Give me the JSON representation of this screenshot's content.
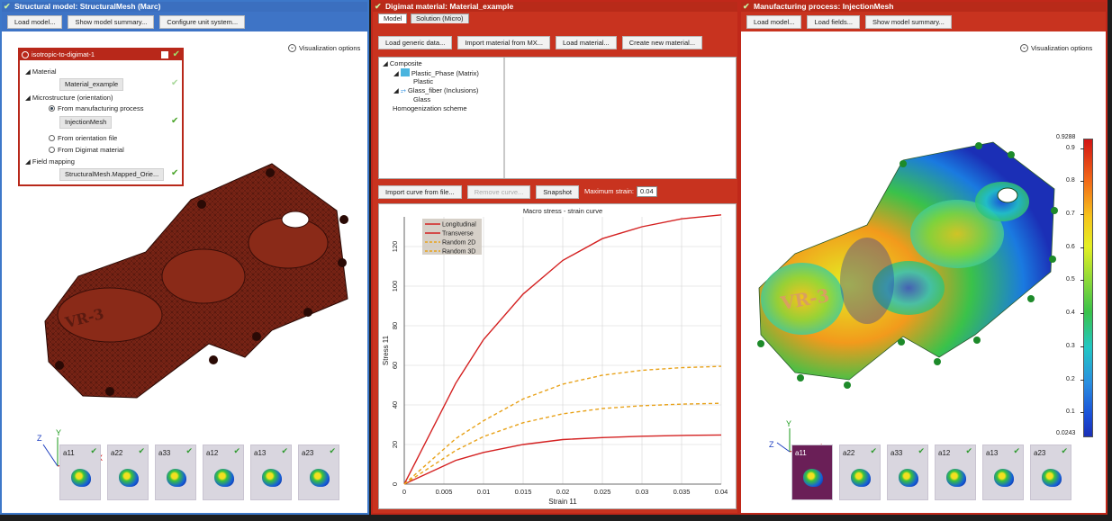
{
  "left_panel": {
    "title": "Structural model: StructuralMesh (Marc)",
    "toolbar": [
      "Load model...",
      "Show model summary...",
      "Configure unit system..."
    ],
    "visualization_options": "Visualization options",
    "workflow": {
      "title": "isotropic-to-digimat-1",
      "material_label": "Material",
      "material_value": "Material_example",
      "microstructure_label": "Microstructure (orientation)",
      "option_manufacturing": "From manufacturing process",
      "manufacturing_value": "InjectionMesh",
      "option_orientation_file": "From orientation file",
      "option_digimat": "From Digimat material",
      "field_mapping_label": "Field mapping",
      "field_mapping_value": "StructuralMesh.Mapped_Orie..."
    },
    "axis_labels": {
      "x": "X",
      "y": "Y",
      "z": "Z"
    },
    "thumbs": [
      "a11",
      "a22",
      "a33",
      "a12",
      "a13",
      "a23"
    ],
    "mesh_text": "VR-3"
  },
  "mid_panel": {
    "title": "Digimat material: Material_example",
    "tabs": [
      "Model",
      "Solution (Micro)"
    ],
    "toolbar": [
      "Load generic data...",
      "Import material from MX...",
      "Load material...",
      "Create new material..."
    ],
    "tree": {
      "composite": "Composite",
      "phase1": "Plastic_Phase (Matrix)",
      "phase1_child": "Plastic",
      "phase2": "Glass_fiber (Inclusions)",
      "phase2_child": "Glass",
      "homogenization": "Homogenization scheme"
    },
    "curve_toolbar": {
      "import": "Import curve from file...",
      "remove": "Remove curve...",
      "snapshot": "Snapshot",
      "max_strain_label": "Maximum strain:",
      "max_strain_value": "0.04"
    }
  },
  "chart_data": {
    "type": "line",
    "title": "Macro stress - strain curve",
    "xlabel": "Strain 11",
    "ylabel": "Stress 11",
    "xlim": [
      0,
      0.04
    ],
    "ylim": [
      0,
      135
    ],
    "xticks": [
      "0",
      "0.005",
      "0.01",
      "0.015",
      "0.02",
      "0.025",
      "0.03",
      "0.035",
      "0.04"
    ],
    "yticks": [
      "0",
      "20",
      "40",
      "60",
      "80",
      "100",
      "120"
    ],
    "grid": true,
    "legend_position": "top-left",
    "legend": [
      "Longitudinal",
      "Transverse",
      "Random 2D",
      "Random 3D"
    ],
    "series": [
      {
        "name": "Longitudinal",
        "color": "#d42121",
        "dash": false,
        "x": [
          0,
          0.0065,
          0.01,
          0.015,
          0.02,
          0.025,
          0.03,
          0.035,
          0.04
        ],
        "y": [
          0,
          51,
          73,
          96,
          113,
          124,
          130,
          134,
          136
        ]
      },
      {
        "name": "Transverse",
        "color": "#d42121",
        "dash": false,
        "x": [
          0,
          0.0065,
          0.01,
          0.015,
          0.02,
          0.025,
          0.03,
          0.035,
          0.04
        ],
        "y": [
          0,
          12,
          16,
          20,
          22.5,
          23.5,
          24.2,
          24.6,
          24.8
        ]
      },
      {
        "name": "Random 2D",
        "color": "#e8a21a",
        "dash": true,
        "x": [
          0,
          0.0065,
          0.01,
          0.015,
          0.02,
          0.025,
          0.03,
          0.035,
          0.04
        ],
        "y": [
          0,
          23,
          32,
          43,
          50.5,
          55,
          57.5,
          58.8,
          59.5
        ]
      },
      {
        "name": "Random 3D",
        "color": "#e8a21a",
        "dash": true,
        "x": [
          0,
          0.0065,
          0.01,
          0.015,
          0.02,
          0.025,
          0.03,
          0.035,
          0.04
        ],
        "y": [
          0,
          17,
          24,
          31,
          35.5,
          38.2,
          39.6,
          40.4,
          40.8
        ]
      }
    ]
  },
  "right_panel": {
    "title": "Manufacturing process: InjectionMesh",
    "toolbar": [
      "Load model...",
      "Load fields...",
      "Show model summary..."
    ],
    "visualization_options": "Visualization options",
    "colorbar": {
      "max": "0.9288",
      "min": "0.0243",
      "ticks": [
        "0.9",
        "0.8",
        "0.7",
        "0.6",
        "0.5",
        "0.4",
        "0.3",
        "0.2",
        "0.1"
      ]
    },
    "axis_labels": {
      "y": "Y",
      "z": "Z"
    },
    "thumbs": [
      "a11",
      "a22",
      "a33",
      "a12",
      "a13",
      "a23"
    ],
    "mesh_text": "VR-3"
  },
  "colors": {
    "blue_header": "#3b6fbf",
    "red_header": "#b82a19",
    "mesh": "#7a2416"
  }
}
